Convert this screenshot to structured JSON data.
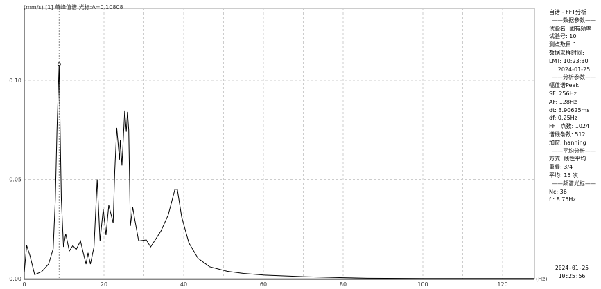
{
  "header": {
    "title": "(mm/s) [1] 单峰值谱 光标:A=0.10808"
  },
  "panel": {
    "lines": [
      {
        "text": "自谱 - FFT分析",
        "sec": false
      },
      {
        "text": "——数据参数——",
        "sec": true
      },
      {
        "text": "试验名: 固有频率",
        "sec": false
      },
      {
        "text": "试验号: 10",
        "sec": false
      },
      {
        "text": "测点数目:1",
        "sec": false
      },
      {
        "text": "数据采样时间:",
        "sec": false
      },
      {
        "text": "LMT: 10:23:30",
        "sec": false
      },
      {
        "text": "2024-01-25",
        "sec": true
      },
      {
        "text": "——分析参数——",
        "sec": true
      },
      {
        "text": "幅值谱Peak",
        "sec": false
      },
      {
        "text": "SF: 256Hz",
        "sec": false
      },
      {
        "text": "AF: 128Hz",
        "sec": false
      },
      {
        "text": "dt: 3.90625ms",
        "sec": false
      },
      {
        "text": "df: 0.25Hz",
        "sec": false
      },
      {
        "text": "FFT 点数: 1024",
        "sec": false
      },
      {
        "text": "谱线条数: 512",
        "sec": false
      },
      {
        "text": "加窗: hanning",
        "sec": false
      },
      {
        "text": "——平均分析——",
        "sec": true
      },
      {
        "text": "方式: 线性平均",
        "sec": false
      },
      {
        "text": "重叠: 3/4",
        "sec": false
      },
      {
        "text": "平均: 15 次",
        "sec": false
      },
      {
        "text": "——频谱光标——",
        "sec": true
      },
      {
        "text": "Nc: 36",
        "sec": false
      },
      {
        "text": "f : 8.75Hz",
        "sec": false
      }
    ]
  },
  "footer": {
    "date": "2024-01-25",
    "time": "10:25:56"
  },
  "chart_data": {
    "type": "line",
    "xlabel": "(Hz)",
    "ylabel": "(mm/s)",
    "xlim": [
      0,
      128
    ],
    "ylim": [
      0,
      0.1
    ],
    "xticks": [
      0,
      20,
      40,
      60,
      80,
      100,
      120
    ],
    "yticks": [
      0,
      0.05,
      0.1
    ],
    "ytick_labels": [
      "0.00",
      "0.05",
      "0.10"
    ],
    "grid": true,
    "cursor": {
      "x": 8.75,
      "y": 0.10808
    },
    "line_color": "#000000",
    "x": [
      0,
      0.6,
      1.45,
      2.6,
      4.35,
      6.1,
      7.25,
      7.8,
      8.2,
      8.75,
      9.0,
      9.3,
      9.85,
      10.4,
      11.3,
      12.2,
      13.0,
      14.1,
      14.8,
      15.5,
      16.0,
      16.6,
      17.5,
      18.3,
      19.0,
      19.8,
      20.5,
      21.2,
      22.3,
      22.7,
      23.2,
      23.9,
      24.1,
      24.5,
      25.2,
      25.6,
      25.9,
      26.2,
      26.6,
      27.2,
      27.7,
      28.7,
      30.6,
      31.7,
      34.3,
      36.1,
      37.8,
      38.4,
      39.5,
      41.3,
      43.6,
      46.5,
      50.9,
      55,
      60,
      70,
      80,
      86,
      100,
      128
    ],
    "y": [
      0.0035,
      0.0167,
      0.0115,
      0.002,
      0.0035,
      0.0073,
      0.015,
      0.04,
      0.075,
      0.10808,
      0.074,
      0.04,
      0.016,
      0.0226,
      0.0139,
      0.0167,
      0.0146,
      0.019,
      0.013,
      0.0073,
      0.013,
      0.0073,
      0.016,
      0.05,
      0.019,
      0.035,
      0.022,
      0.037,
      0.028,
      0.054,
      0.076,
      0.06,
      0.07,
      0.057,
      0.0847,
      0.074,
      0.084,
      0.075,
      0.0265,
      0.036,
      0.03,
      0.019,
      0.0195,
      0.016,
      0.024,
      0.032,
      0.045,
      0.045,
      0.031,
      0.018,
      0.0102,
      0.006,
      0.0037,
      0.0026,
      0.0018,
      0.001,
      0.0005,
      0.0002,
      0.0001,
      0.0001
    ]
  }
}
